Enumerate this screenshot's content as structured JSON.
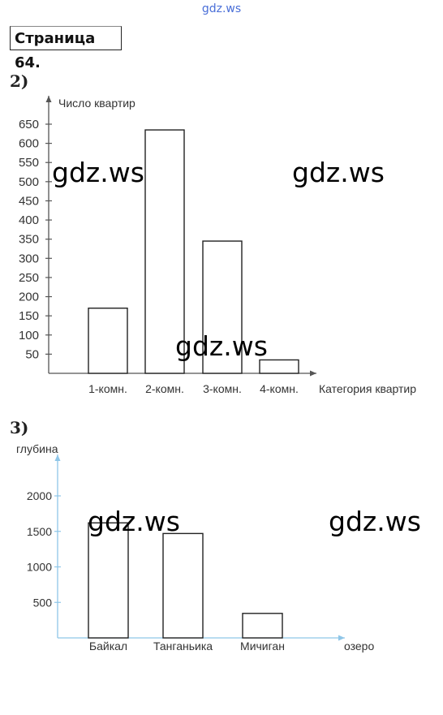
{
  "site": "gdz.ws",
  "page_label": "Страница 64.",
  "watermark": "gdz.ws",
  "chart_data": [
    {
      "type": "bar",
      "task": "2)",
      "ylabel": "Число квартир",
      "xlabel": "Категория квартир",
      "categories": [
        "1-комн.",
        "2-комн.",
        "3-комн.",
        "4-комн."
      ],
      "values": [
        170,
        635,
        345,
        35
      ],
      "yticks": [
        50,
        100,
        150,
        200,
        250,
        300,
        350,
        400,
        450,
        500,
        550,
        600,
        650
      ],
      "ylim": [
        0,
        650
      ],
      "grid": false,
      "colors": {
        "axis": "#555555",
        "bar_fill": "#ffffff",
        "bar_stroke": "#222222"
      }
    },
    {
      "type": "bar",
      "task": "3)",
      "ylabel": "глубина",
      "xlabel": "озеро",
      "categories": [
        "Байкал",
        "Танганьика",
        "Мичиган"
      ],
      "values": [
        1620,
        1470,
        345
      ],
      "yticks": [
        500,
        1000,
        1500,
        2000
      ],
      "ylim": [
        0,
        2000
      ],
      "grid": false,
      "colors": {
        "axis": "#8fc6e8",
        "bar_fill": "#ffffff",
        "bar_stroke": "#222222"
      }
    }
  ]
}
